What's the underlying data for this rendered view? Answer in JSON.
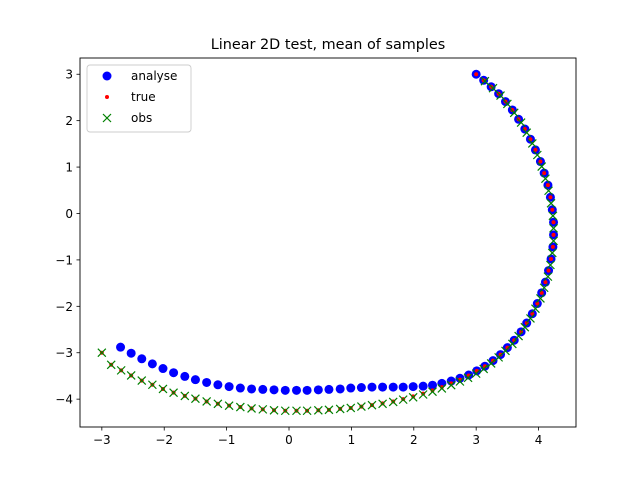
{
  "chart_data": {
    "type": "scatter",
    "title": "Linear 2D test, mean of samples",
    "xlabel": "",
    "ylabel": "",
    "xlim": [
      -3.35,
      4.6
    ],
    "ylim": [
      -4.6,
      3.35
    ],
    "xticks": [
      -3,
      -2,
      -1,
      0,
      1,
      2,
      3,
      4
    ],
    "yticks": [
      -4,
      -3,
      -2,
      -1,
      0,
      1,
      2,
      3
    ],
    "xtick_labels": [
      "−3",
      "−2",
      "−1",
      "0",
      "1",
      "2",
      "3",
      "4"
    ],
    "ytick_labels": [
      "−4",
      "−3",
      "−2",
      "−1",
      "0",
      "1",
      "2",
      "3"
    ],
    "grid": false,
    "legend_position": "upper-left",
    "series": [
      {
        "name": "analyse",
        "marker": "circle",
        "color": "#0000ff",
        "x": [
          3.0,
          3.12,
          3.24,
          3.36,
          3.47,
          3.58,
          3.68,
          3.78,
          3.87,
          3.95,
          4.03,
          4.09,
          4.15,
          4.19,
          4.22,
          4.24,
          4.24,
          4.23,
          4.2,
          4.16,
          4.11,
          4.05,
          3.98,
          3.9,
          3.81,
          3.72,
          3.61,
          3.5,
          3.39,
          3.27,
          3.14,
          3.01,
          2.88,
          2.74,
          2.6,
          2.45,
          2.3,
          2.15,
          1.99,
          1.83,
          1.67,
          1.5,
          1.33,
          1.16,
          0.99,
          0.82,
          0.64,
          0.47,
          0.29,
          0.12,
          -0.06,
          -0.24,
          -0.42,
          -0.6,
          -0.78,
          -0.96,
          -1.14,
          -1.32,
          -1.5,
          -1.67,
          -1.85,
          -2.02,
          -2.19,
          -2.36,
          -2.53,
          -2.7
        ],
        "y": [
          3.0,
          2.87,
          2.73,
          2.58,
          2.41,
          2.23,
          2.03,
          1.82,
          1.6,
          1.37,
          1.12,
          0.87,
          0.61,
          0.35,
          0.08,
          -0.19,
          -0.46,
          -0.72,
          -0.98,
          -1.23,
          -1.48,
          -1.71,
          -1.94,
          -2.16,
          -2.36,
          -2.55,
          -2.73,
          -2.89,
          -3.04,
          -3.17,
          -3.29,
          -3.39,
          -3.48,
          -3.55,
          -3.61,
          -3.66,
          -3.7,
          -3.72,
          -3.73,
          -3.74,
          -3.74,
          -3.74,
          -3.74,
          -3.75,
          -3.76,
          -3.78,
          -3.79,
          -3.8,
          -3.81,
          -3.81,
          -3.81,
          -3.8,
          -3.79,
          -3.78,
          -3.76,
          -3.73,
          -3.69,
          -3.64,
          -3.58,
          -3.51,
          -3.43,
          -3.34,
          -3.24,
          -3.13,
          -3.01,
          -2.88
        ]
      },
      {
        "name": "true",
        "marker": "point",
        "color": "#ff0000",
        "x": [
          3.0,
          3.12,
          3.24,
          3.36,
          3.47,
          3.58,
          3.68,
          3.78,
          3.87,
          3.95,
          4.03,
          4.09,
          4.15,
          4.19,
          4.22,
          4.24,
          4.24,
          4.23,
          4.2,
          4.16,
          4.11,
          4.05,
          3.98,
          3.9,
          3.81,
          3.72,
          3.61,
          3.5,
          3.39,
          3.27,
          3.14,
          3.01,
          2.88,
          2.74,
          2.6,
          2.45,
          2.3,
          2.15,
          1.99,
          1.83,
          1.67,
          1.5,
          1.33,
          1.16,
          0.99,
          0.82,
          0.64,
          0.47,
          0.29,
          0.12,
          -0.06,
          -0.24,
          -0.42,
          -0.6,
          -0.78,
          -0.96,
          -1.14,
          -1.32,
          -1.5,
          -1.67,
          -1.85,
          -2.02,
          -2.19,
          -2.36,
          -2.53,
          -2.69,
          -2.85,
          -3.0
        ],
        "y": [
          3.0,
          2.87,
          2.73,
          2.58,
          2.41,
          2.23,
          2.03,
          1.82,
          1.6,
          1.37,
          1.12,
          0.87,
          0.61,
          0.35,
          0.08,
          -0.19,
          -0.46,
          -0.72,
          -0.98,
          -1.23,
          -1.48,
          -1.71,
          -1.94,
          -2.16,
          -2.36,
          -2.55,
          -2.73,
          -2.89,
          -3.04,
          -3.17,
          -3.29,
          -3.39,
          -3.49,
          -3.58,
          -3.66,
          -3.74,
          -3.81,
          -3.88,
          -3.94,
          -4.0,
          -4.05,
          -4.09,
          -4.13,
          -4.16,
          -4.19,
          -4.21,
          -4.23,
          -4.24,
          -4.25,
          -4.25,
          -4.25,
          -4.24,
          -4.22,
          -4.2,
          -4.17,
          -4.14,
          -4.1,
          -4.05,
          -3.99,
          -3.93,
          -3.86,
          -3.78,
          -3.69,
          -3.6,
          -3.49,
          -3.38,
          -3.26,
          -3.0
        ]
      },
      {
        "name": "obs",
        "marker": "x",
        "color": "#008000",
        "x": [
          3.14,
          3.27,
          3.39,
          3.5,
          3.61,
          3.72,
          3.81,
          3.9,
          3.98,
          4.05,
          4.11,
          4.16,
          4.2,
          4.23,
          4.24,
          4.24,
          4.22,
          4.19,
          4.15,
          4.09,
          4.03,
          3.95,
          3.87,
          3.78,
          3.68,
          3.58,
          3.47,
          3.36,
          3.24,
          3.12,
          3.0,
          2.87,
          2.74,
          2.6,
          2.45,
          2.3,
          2.15,
          1.99,
          1.83,
          1.67,
          1.5,
          1.33,
          1.16,
          0.99,
          0.82,
          0.64,
          0.47,
          0.29,
          0.12,
          -0.06,
          -0.24,
          -0.42,
          -0.6,
          -0.78,
          -0.96,
          -1.14,
          -1.32,
          -1.5,
          -1.67,
          -1.85,
          -2.02,
          -2.19,
          -2.36,
          -2.53,
          -2.69,
          -2.85,
          -3.0
        ],
        "y": [
          2.85,
          2.7,
          2.54,
          2.36,
          2.17,
          1.96,
          1.74,
          1.51,
          1.26,
          1.01,
          0.75,
          0.49,
          0.22,
          -0.05,
          -0.32,
          -0.59,
          -0.85,
          -1.11,
          -1.36,
          -1.6,
          -1.83,
          -2.05,
          -2.26,
          -2.45,
          -2.64,
          -2.81,
          -2.96,
          -3.1,
          -3.23,
          -3.35,
          -3.45,
          -3.54,
          -3.62,
          -3.7,
          -3.77,
          -3.84,
          -3.9,
          -3.96,
          -4.01,
          -4.06,
          -4.1,
          -4.13,
          -4.16,
          -4.19,
          -4.21,
          -4.23,
          -4.24,
          -4.25,
          -4.25,
          -4.25,
          -4.24,
          -4.22,
          -4.2,
          -4.17,
          -4.14,
          -4.1,
          -4.05,
          -3.99,
          -3.93,
          -3.86,
          -3.78,
          -3.69,
          -3.6,
          -3.49,
          -3.38,
          -3.26,
          -3.0
        ]
      }
    ]
  }
}
